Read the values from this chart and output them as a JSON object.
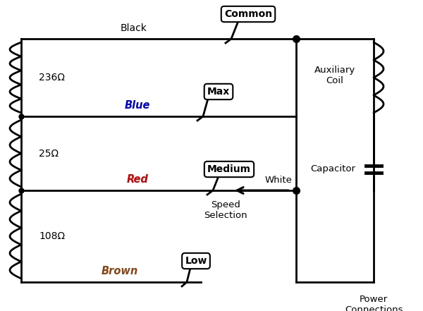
{
  "bg_color": "#ffffff",
  "line_color": "#000000",
  "wire_colors": {
    "black": "#000000",
    "blue": "#0000cc",
    "red": "#cc0000",
    "brown": "#8B4513",
    "white": "#000000"
  },
  "resistances": [
    "236Ω",
    "25Ω",
    "108Ω"
  ],
  "labels": {
    "common": "Common",
    "max": "Max",
    "medium": "Medium",
    "low": "Low",
    "black": "Black",
    "blue": "Blue",
    "red": "Red",
    "brown": "Brown",
    "white": "White",
    "aux_coil": "Auxiliary\nCoil",
    "capacitor": "Capacitor",
    "speed": "Speed\nSelection",
    "power": "Power\nConnections"
  },
  "figsize": [
    6.0,
    4.41
  ],
  "dpi": 100
}
